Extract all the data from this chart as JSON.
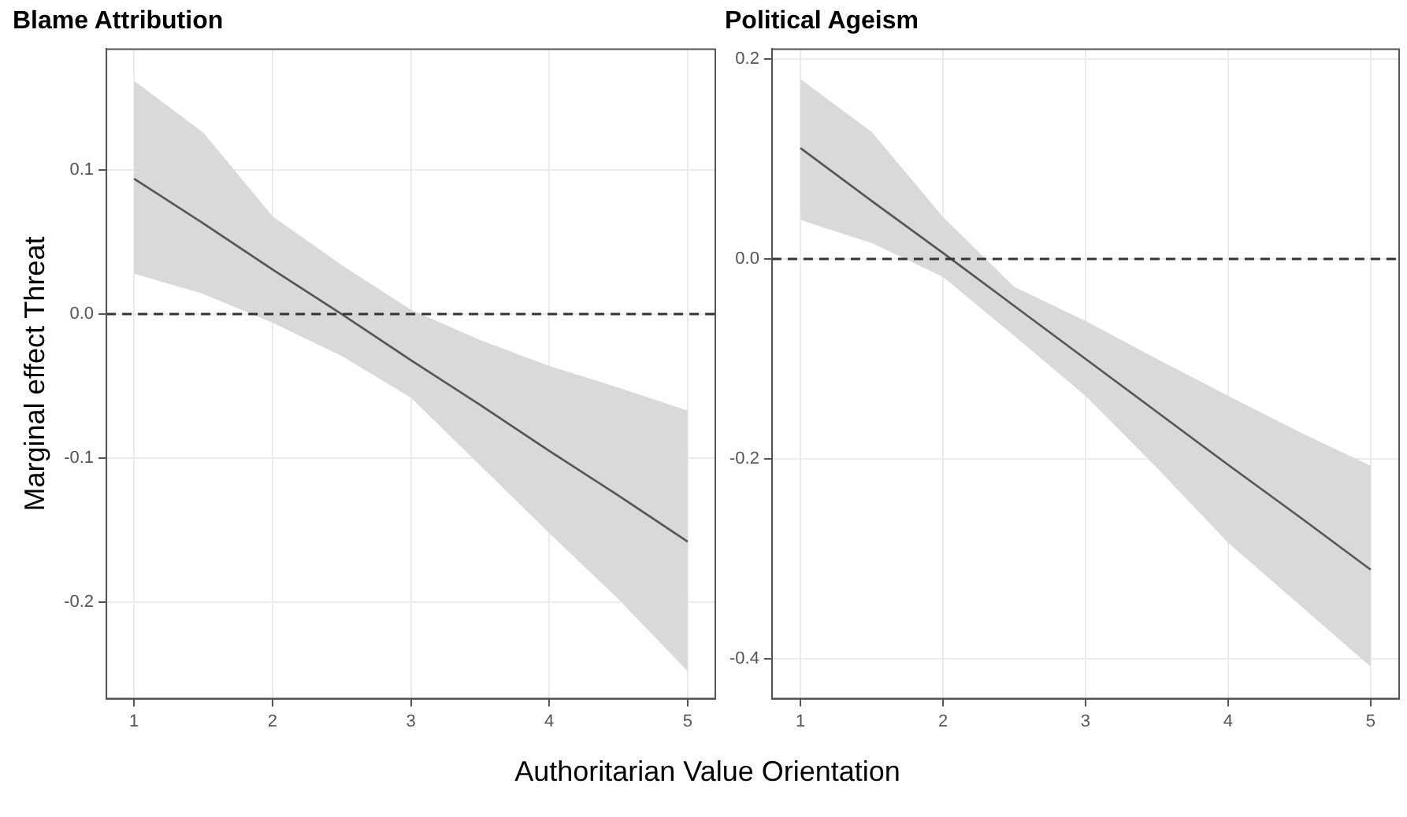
{
  "chart_data": [
    {
      "type": "line",
      "title": "Blame Attribution",
      "ylabel": "Marginal effect Threat",
      "xlabel": "Authoritarian Value Orientation",
      "x": [
        1,
        1.5,
        2,
        2.5,
        3,
        3.5,
        4,
        4.5,
        5
      ],
      "xlim": [
        0.8,
        5.2
      ],
      "xticks": [
        1,
        2,
        3,
        4,
        5
      ],
      "ylim": [
        -0.267,
        0.184
      ],
      "yticks": [
        0.1,
        {
          "value": 0,
          "label": "0.0"
        },
        -0.1,
        -0.2
      ],
      "grid": true,
      "marker": "none",
      "series": [
        {
          "color": "#555555",
          "values": [
            0.094,
            0.063,
            0.031,
            0,
            -0.032,
            -0.063,
            -0.095,
            -0.126,
            -0.158
          ],
          "lower": [
            0.028,
            0.014,
            -0.006,
            -0.029,
            -0.058,
            -0.105,
            -0.152,
            -0.198,
            -0.248
          ],
          "upper": [
            0.162,
            0.126,
            0.068,
            0.034,
            0.003,
            -0.018,
            -0.036,
            -0.051,
            -0.067
          ]
        }
      ],
      "ref_lines": [
        {
          "axis": "y",
          "value": 0,
          "line_style": "dashed",
          "color": "#333333"
        }
      ]
    },
    {
      "type": "line",
      "title": "Political Ageism",
      "x": [
        1,
        1.5,
        2,
        2.5,
        3,
        3.5,
        4,
        4.5,
        5
      ],
      "xlim": [
        0.8,
        5.2
      ],
      "xticks": [
        1,
        2,
        3,
        4,
        5
      ],
      "ylim": [
        -0.44,
        0.21
      ],
      "yticks": [
        0.2,
        {
          "value": 0,
          "label": "0.0"
        },
        -0.2,
        -0.4
      ],
      "grid": true,
      "marker": "none",
      "series": [
        {
          "color": "#555555",
          "values": [
            0.111,
            0.058,
            0.006,
            -0.047,
            -0.1,
            -0.153,
            -0.206,
            -0.258,
            -0.311
          ],
          "lower": [
            0.039,
            0.016,
            -0.018,
            -0.077,
            -0.137,
            -0.209,
            -0.284,
            -0.346,
            -0.408
          ],
          "upper": [
            0.18,
            0.127,
            0.042,
            -0.028,
            -0.062,
            -0.1,
            -0.137,
            -0.173,
            -0.207
          ]
        }
      ],
      "ref_lines": [
        {
          "axis": "y",
          "value": 0,
          "line_style": "dashed",
          "color": "#333333"
        }
      ]
    }
  ]
}
